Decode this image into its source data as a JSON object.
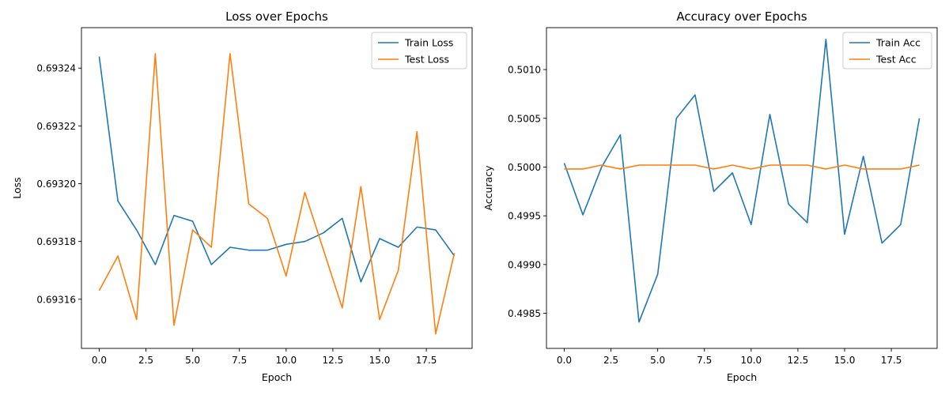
{
  "chart_data": [
    {
      "type": "line",
      "title": "Loss over Epochs",
      "xlabel": "Epoch",
      "ylabel": "Loss",
      "xlim": [
        -0.95,
        19.95
      ],
      "ylim": [
        0.693143,
        0.693254
      ],
      "xticks": [
        0.0,
        2.5,
        5.0,
        7.5,
        10.0,
        12.5,
        15.0,
        17.5
      ],
      "xtick_labels": [
        "0.0",
        "2.5",
        "5.0",
        "7.5",
        "10.0",
        "12.5",
        "15.0",
        "17.5"
      ],
      "yticks": [
        0.69316,
        0.69318,
        0.6932,
        0.69322,
        0.69324
      ],
      "ytick_labels": [
        "0.69316",
        "0.69318",
        "0.69320",
        "0.69322",
        "0.69324"
      ],
      "grid": false,
      "legend_position": "top-right",
      "x": [
        0,
        1,
        2,
        3,
        4,
        5,
        6,
        7,
        8,
        9,
        10,
        11,
        12,
        13,
        14,
        15,
        16,
        17,
        18,
        19
      ],
      "series": [
        {
          "name": "Train Loss",
          "color": "#1f77b4",
          "values": [
            0.693244,
            0.693194,
            0.693184,
            0.693172,
            0.693189,
            0.693187,
            0.693172,
            0.693178,
            0.693177,
            0.693177,
            0.693179,
            0.69318,
            0.693183,
            0.693188,
            0.693166,
            0.693181,
            0.693178,
            0.693185,
            0.693184,
            0.693175
          ]
        },
        {
          "name": "Test Loss",
          "color": "#ff7f0e",
          "values": [
            0.693163,
            0.693175,
            0.693153,
            0.693245,
            0.693151,
            0.693184,
            0.693178,
            0.693245,
            0.693193,
            0.693188,
            0.693168,
            0.693197,
            0.693177,
            0.693157,
            0.693199,
            0.693153,
            0.69317,
            0.693218,
            0.693148,
            0.693176
          ]
        }
      ]
    },
    {
      "type": "line",
      "title": "Accuracy over Epochs",
      "xlabel": "Epoch",
      "ylabel": "Accuracy",
      "xlim": [
        -0.95,
        19.95
      ],
      "ylim": [
        0.49814,
        0.50143
      ],
      "xticks": [
        0.0,
        2.5,
        5.0,
        7.5,
        10.0,
        12.5,
        15.0,
        17.5
      ],
      "xtick_labels": [
        "0.0",
        "2.5",
        "5.0",
        "7.5",
        "10.0",
        "12.5",
        "15.0",
        "17.5"
      ],
      "yticks": [
        0.4985,
        0.499,
        0.4995,
        0.5,
        0.5005,
        0.501
      ],
      "ytick_labels": [
        "0.4985",
        "0.4990",
        "0.4995",
        "0.5000",
        "0.5005",
        "0.5010"
      ],
      "grid": false,
      "legend_position": "top-right",
      "x": [
        0,
        1,
        2,
        3,
        4,
        5,
        6,
        7,
        8,
        9,
        10,
        11,
        12,
        13,
        14,
        15,
        16,
        17,
        18,
        19
      ],
      "series": [
        {
          "name": "Train Acc",
          "color": "#1f77b4",
          "values": [
            0.50004,
            0.49951,
            0.5,
            0.50033,
            0.49841,
            0.4989,
            0.5005,
            0.50074,
            0.49975,
            0.49994,
            0.49941,
            0.50054,
            0.49962,
            0.49943,
            0.50131,
            0.49931,
            0.50011,
            0.49922,
            0.49941,
            0.5005
          ]
        },
        {
          "name": "Test Acc",
          "color": "#ff7f0e",
          "values": [
            0.49998,
            0.49998,
            0.50002,
            0.49998,
            0.50002,
            0.50002,
            0.50002,
            0.50002,
            0.49998,
            0.50002,
            0.49998,
            0.50002,
            0.50002,
            0.50002,
            0.49998,
            0.50002,
            0.49998,
            0.49998,
            0.49998,
            0.50002
          ]
        }
      ]
    }
  ]
}
